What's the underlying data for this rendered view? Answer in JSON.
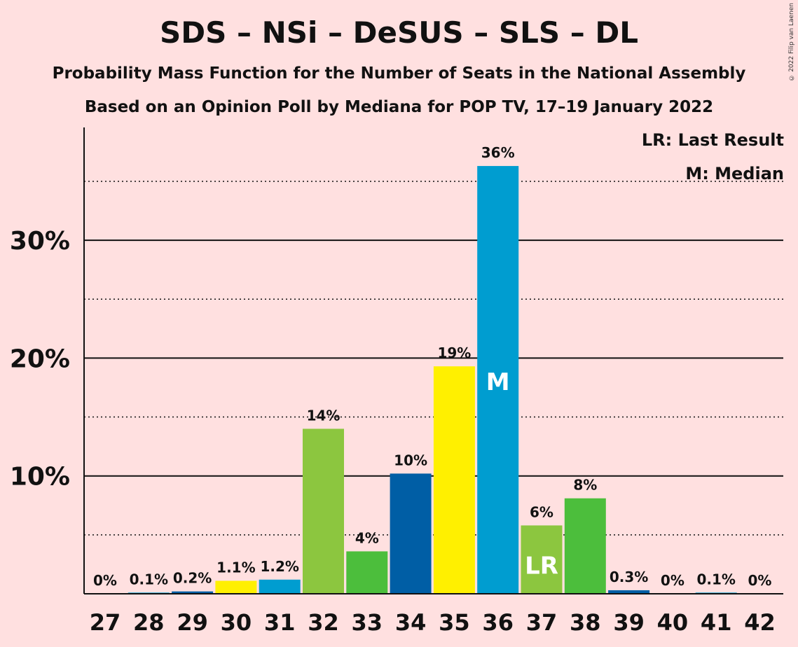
{
  "title": "SDS – NSi – DeSUS – SLS – DL",
  "subtitle_1": "Probability Mass Function for the Number of Seats in the National Assembly",
  "subtitle_2": "Based on an Opinion Poll by Mediana for POP TV, 17–19 January 2022",
  "copyright": "© 2022 Filip van Laenen",
  "legend": {
    "last_result": "LR: Last Result",
    "median": "M: Median"
  },
  "chart_data": {
    "type": "bar",
    "categories": [
      "27",
      "28",
      "29",
      "30",
      "31",
      "32",
      "33",
      "34",
      "35",
      "36",
      "37",
      "38",
      "39",
      "40",
      "41",
      "42"
    ],
    "values": [
      0,
      0.1,
      0.2,
      1.1,
      1.2,
      14,
      3.6,
      10.2,
      19.3,
      36.3,
      5.8,
      8.1,
      0.3,
      0,
      0.1,
      0
    ],
    "data_labels": [
      "0%",
      "0.1%",
      "0.2%",
      "1.1%",
      "1.2%",
      "14%",
      "4%",
      "10%",
      "19%",
      "36%",
      "6%",
      "8%",
      "0.3%",
      "0%",
      "0.1%",
      "0%"
    ],
    "colors": [
      "#009DD0",
      "#009DD0",
      "#005EA5",
      "#FFF000",
      "#009DD0",
      "#8CC63F",
      "#4CBE3C",
      "#005EA5",
      "#FFF000",
      "#009DD0",
      "#8CC63F",
      "#4CBE3C",
      "#005EA5",
      "#009DD0",
      "#009DD0",
      "#009DD0"
    ],
    "ylim": [
      0,
      39.5
    ],
    "y_ticks_major": [
      10,
      20,
      30
    ],
    "y_tick_labels": [
      "10%",
      "20%",
      "30%"
    ],
    "y_ticks_minor": [
      5,
      15,
      25,
      35
    ],
    "bar_markers": {
      "36": "M",
      "37": "LR"
    },
    "xlabel": "",
    "ylabel": ""
  }
}
